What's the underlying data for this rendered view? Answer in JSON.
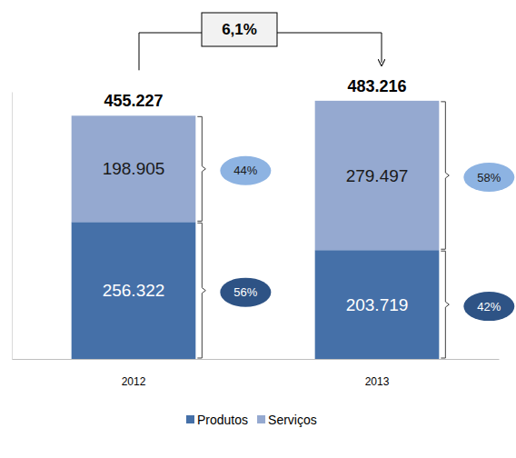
{
  "chart_data": {
    "type": "bar",
    "stacked": true,
    "data_labels": true,
    "tick_labels": "x",
    "categories": [
      "2012",
      "2013"
    ],
    "ylim": [
      0,
      500000
    ],
    "series": [
      {
        "name": "Produtos",
        "color": "#4570A8",
        "values": [
          256322,
          203719
        ],
        "value_labels": [
          "256.322",
          "203.719"
        ],
        "percent_labels": [
          "56%",
          "42%"
        ]
      },
      {
        "name": "Serviços",
        "color": "#95A9D0",
        "values": [
          198905,
          279497
        ],
        "value_labels": [
          "198.905",
          "279.497"
        ],
        "percent_labels": [
          "44%",
          "58%"
        ]
      }
    ],
    "totals": [
      455227,
      483216
    ],
    "total_labels": [
      "455.227",
      "483.216"
    ],
    "annotation": "6,1%",
    "legend": "bottom"
  }
}
